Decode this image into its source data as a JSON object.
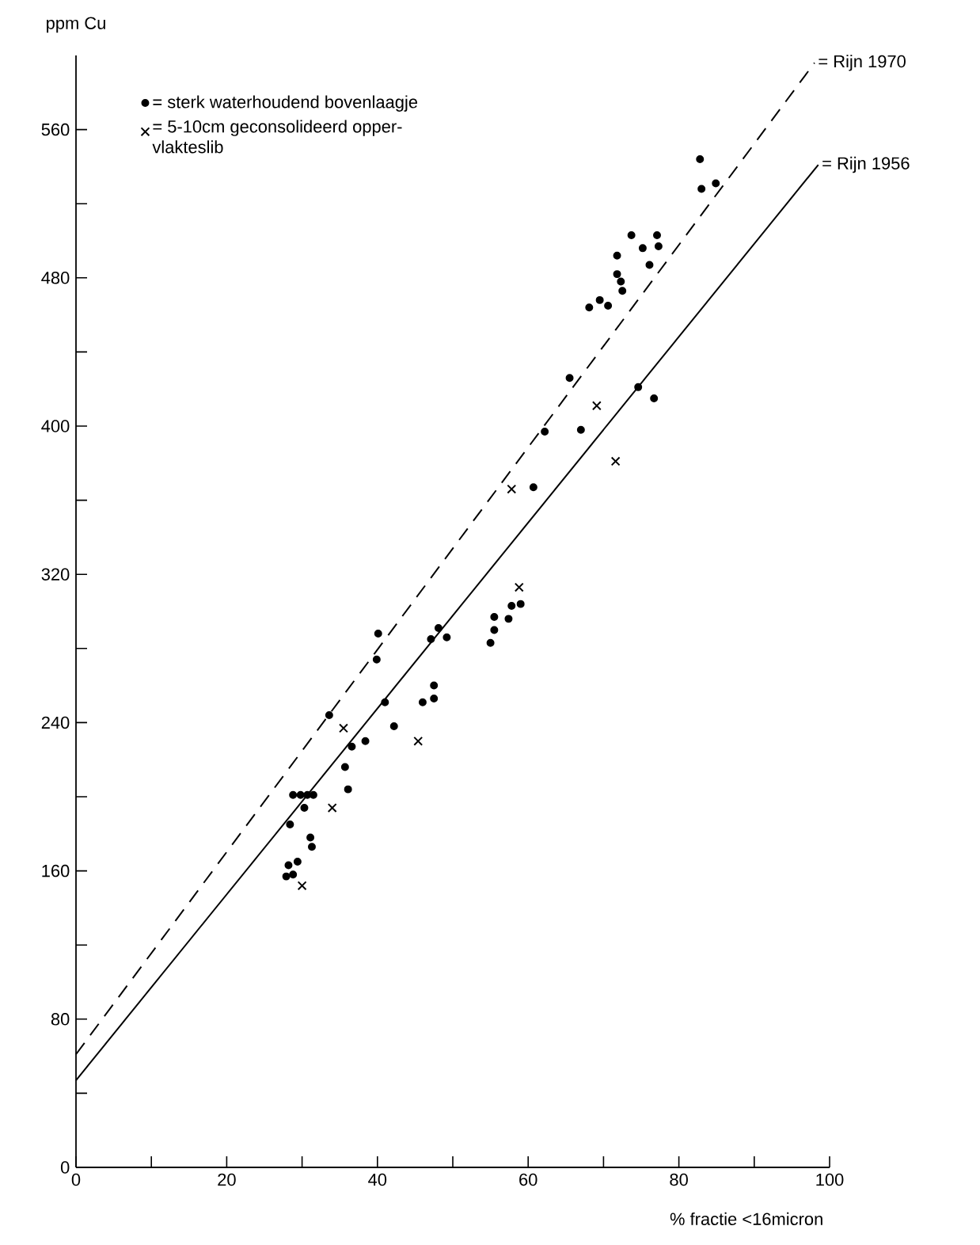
{
  "chart_data": {
    "type": "scatter",
    "xlabel": "% fractie <16micron",
    "ylabel": "ppm Cu",
    "xlim": [
      0,
      100
    ],
    "ylim": [
      0,
      600
    ],
    "xticks": [
      0,
      {
        "value": 10,
        "label": null
      },
      20,
      {
        "value": 30,
        "label": null
      },
      40,
      {
        "value": 50,
        "label": null
      },
      60,
      {
        "value": 70,
        "label": null
      },
      80,
      {
        "value": 90,
        "label": null
      },
      100
    ],
    "yticks": [
      0,
      {
        "value": 40,
        "label": null
      },
      80,
      {
        "value": 120,
        "label": null
      },
      160,
      {
        "value": 200,
        "label": null
      },
      240,
      {
        "value": 280,
        "label": null
      },
      320,
      {
        "value": 360,
        "label": null
      },
      400,
      {
        "value": 440,
        "label": null
      },
      480,
      {
        "value": 520,
        "label": null
      },
      560
    ],
    "legend": "top left",
    "grid": false,
    "series": [
      {
        "name": "= sterk waterhoudend bovenlaagje",
        "type": "scatter",
        "marker": "circle",
        "color": "#000000",
        "x": [
          27.9,
          28.8,
          28.2,
          29.4,
          28.4,
          28.8,
          29.8,
          30.7,
          31.5,
          30.3,
          31.1,
          31.3,
          33.6,
          35.7,
          36.1,
          36.6,
          38.4,
          39.9,
          40.1,
          41.0,
          42.2,
          46.0,
          47.5,
          47.5,
          47.1,
          48.1,
          49.2,
          55.0,
          55.5,
          55.5,
          57.4,
          57.8,
          59.0,
          60.7,
          62.2,
          67.0,
          65.5,
          74.6,
          76.7,
          68.1,
          69.5,
          70.6,
          71.8,
          71.8,
          72.3,
          72.5,
          73.7,
          77.1,
          75.2,
          77.3,
          76.1,
          82.8,
          83.0,
          84.9
        ],
        "values": [
          157,
          158,
          163,
          165,
          185,
          201,
          201,
          201,
          201,
          194,
          178,
          173,
          244,
          216,
          204,
          227,
          230,
          274,
          288,
          251,
          238,
          251,
          253,
          260,
          285,
          291,
          286,
          283,
          290,
          297,
          296,
          303,
          304,
          367,
          397,
          398,
          426,
          421,
          415,
          464,
          468,
          465,
          492,
          482,
          478,
          473,
          503,
          503,
          496,
          497,
          487,
          544,
          528,
          531
        ]
      },
      {
        "name": "= 5-10cm geconsolideerd opper- vlakteslib",
        "type": "scatter",
        "marker": "cross",
        "color": "#000000",
        "x": [
          30.0,
          34.0,
          35.5,
          45.4,
          57.8,
          58.8,
          69.1,
          71.6
        ],
        "values": [
          152,
          194,
          237,
          230,
          366,
          313,
          411,
          381
        ]
      },
      {
        "name": "= Rijn 1970",
        "type": "line",
        "marker": "none",
        "line_style": "dashed",
        "color": "#000000",
        "x": [
          0,
          98
        ],
        "values": [
          61,
          596
        ]
      },
      {
        "name": "= Rijn 1956",
        "type": "line",
        "marker": "none",
        "line_style": "solid",
        "color": "#000000",
        "x": [
          0,
          98.5
        ],
        "values": [
          47,
          541
        ]
      }
    ]
  }
}
